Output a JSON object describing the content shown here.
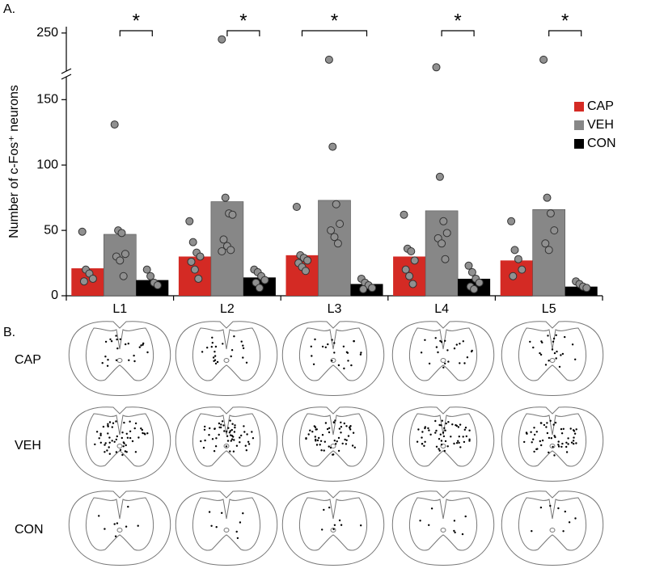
{
  "panel_labels": [
    "A.",
    "B."
  ],
  "chart_data": {
    "type": "bar",
    "ylabel": "Number of c-Fos⁺ neurons",
    "categories": [
      "L1",
      "L2",
      "L3",
      "L4",
      "L5"
    ],
    "ylim": [
      0,
      255
    ],
    "ybreak": [
      165,
      220
    ],
    "yticks": [
      0,
      50,
      100,
      150,
      250
    ],
    "legend": "upper right",
    "series": [
      {
        "name": "CAP",
        "color": "#d42a24",
        "values": [
          21,
          30,
          31,
          30,
          27
        ],
        "points": [
          [
            49,
            20,
            17,
            13,
            11
          ],
          [
            57,
            41,
            33,
            30,
            26,
            20,
            13
          ],
          [
            68,
            31,
            29,
            27,
            25,
            22,
            19
          ],
          [
            62,
            36,
            34,
            27,
            20,
            15,
            9
          ],
          [
            57,
            35,
            28,
            20,
            15
          ]
        ]
      },
      {
        "name": "VEH",
        "color": "#878787",
        "values": [
          47,
          72,
          73,
          65,
          66
        ],
        "points": [
          [
            131,
            50,
            48,
            32,
            30,
            27,
            15
          ],
          [
            245,
            75,
            63,
            62,
            43,
            38,
            35,
            34
          ],
          [
            229,
            114,
            70,
            55,
            50,
            45,
            40
          ],
          [
            223,
            91,
            57,
            48,
            44,
            40,
            28
          ],
          [
            229,
            75,
            63,
            50,
            40,
            35
          ]
        ]
      },
      {
        "name": "CON",
        "color": "#000000",
        "values": [
          12,
          14,
          9,
          13,
          7
        ],
        "points": [
          [
            20,
            15,
            10,
            8
          ],
          [
            20,
            18,
            15,
            12,
            10,
            6
          ],
          [
            13,
            10,
            8,
            6,
            5
          ],
          [
            23,
            18,
            13,
            10,
            7,
            5
          ],
          [
            11,
            9,
            7,
            6
          ]
        ]
      }
    ],
    "significance": [
      {
        "category": 0,
        "from": 1,
        "to": 2,
        "label": "*"
      },
      {
        "category": 1,
        "from": 1,
        "to": 2,
        "label": "*"
      },
      {
        "category": 2,
        "from": 0,
        "to": 2,
        "label": "*"
      },
      {
        "category": 3,
        "from": 1,
        "to": 2,
        "label": "*"
      },
      {
        "category": 4,
        "from": 1,
        "to": 2,
        "label": "*"
      }
    ]
  },
  "panel_b": {
    "rows": [
      "CAP",
      "VEH",
      "CON"
    ]
  }
}
